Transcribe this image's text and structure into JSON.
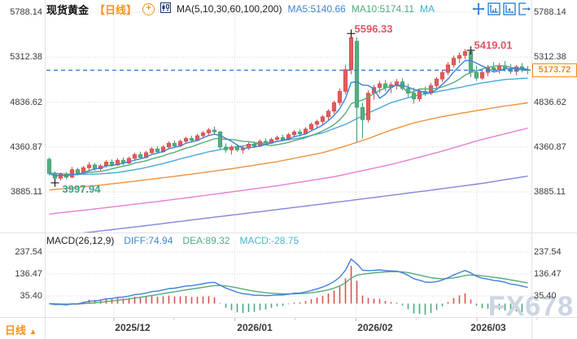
{
  "header": {
    "symbol": "现货黄金",
    "period_tag": "【日线】",
    "add_icon": "+",
    "ma_settings": "MA(5,10,30,60,100,200)",
    "ma5_label": "MA5:5140.66",
    "ma10_label": "MA10:5174.11",
    "ma_more_label": "MA"
  },
  "axes": {
    "price_labels": [
      "5788.14",
      "5312.38",
      "4836.62",
      "4360.87",
      "3885.11"
    ],
    "macd_labels": [
      "237.54",
      "136.47",
      "35.40"
    ],
    "time_labels": [
      "2025/12",
      "2026/01",
      "2026/02",
      "2026/03"
    ]
  },
  "annotations": {
    "high1": "5596.33",
    "high2": "5419.01",
    "low": "3997.94",
    "last_price": "5173.72"
  },
  "macd_header": {
    "title": "MACD(26,12,9)",
    "diff": "DIFF:74.94",
    "dea": "DEA:89.32",
    "macd": "MACD:-28.75"
  },
  "bottom": {
    "period_button": "日线",
    "period_arrow": "▲"
  },
  "watermark": "FX678",
  "colors": {
    "up": "#e25b5b",
    "up_stroke": "#d94f4f",
    "down": "#58ad80",
    "down_stroke": "#3f9f6f",
    "ma5": "#4180d8",
    "ma10": "#55ab7a",
    "ma30": "#49a8dc",
    "ma60": "#f0923f",
    "ma100": "#e87fd4",
    "ma200": "#8585e0",
    "last_line": "#2b7cd6",
    "grid": "#d6d6d6",
    "hist_pos": "#d9534f",
    "hist_neg": "#4aa97c",
    "accent_orange": "#f7941e",
    "toolbar_blue": "#1f78c8"
  },
  "chart_data": {
    "type": "candlestick+macd",
    "title": "现货黄金 日线 (Spot Gold Daily)",
    "x_axis_months": [
      "2025/12",
      "2026/01",
      "2026/02",
      "2026/03"
    ],
    "price_axis_ticks": [
      5788.14,
      5312.38,
      4836.62,
      4360.87,
      3885.11
    ],
    "macd_axis_ticks": [
      237.54,
      136.47,
      35.4
    ],
    "last_price": 5173.72,
    "ma5_current": 5140.66,
    "ma10_current": 5174.11,
    "macd_params": [
      26,
      12,
      9
    ],
    "macd_current": {
      "diff": 74.94,
      "dea": 89.32,
      "macd": -28.75
    },
    "high_annotations": [
      {
        "index": 53,
        "price": 5596.33
      },
      {
        "index": 74,
        "price": 5419.01
      }
    ],
    "low_annotation": {
      "index": 1,
      "price": 3997.94
    },
    "candles": [
      [
        4230,
        4250,
        4060,
        4080
      ],
      [
        4080,
        4100,
        3997.9,
        4030
      ],
      [
        4030,
        4090,
        4005,
        4075
      ],
      [
        4075,
        4095,
        4020,
        4040
      ],
      [
        4040,
        4150,
        4030,
        4120
      ],
      [
        4120,
        4140,
        4060,
        4080
      ],
      [
        4080,
        4160,
        4070,
        4140
      ],
      [
        4140,
        4200,
        4100,
        4170
      ],
      [
        4170,
        4190,
        4110,
        4130
      ],
      [
        4130,
        4180,
        4100,
        4160
      ],
      [
        4160,
        4220,
        4140,
        4200
      ],
      [
        4200,
        4230,
        4150,
        4170
      ],
      [
        4170,
        4240,
        4160,
        4220
      ],
      [
        4220,
        4250,
        4170,
        4190
      ],
      [
        4190,
        4260,
        4180,
        4240
      ],
      [
        4240,
        4300,
        4220,
        4280
      ],
      [
        4280,
        4310,
        4230,
        4250
      ],
      [
        4250,
        4320,
        4240,
        4300
      ],
      [
        4300,
        4360,
        4280,
        4340
      ],
      [
        4340,
        4370,
        4290,
        4310
      ],
      [
        4310,
        4380,
        4300,
        4360
      ],
      [
        4360,
        4420,
        4340,
        4400
      ],
      [
        4400,
        4430,
        4350,
        4370
      ],
      [
        4370,
        4440,
        4360,
        4420
      ],
      [
        4420,
        4470,
        4400,
        4450
      ],
      [
        4450,
        4480,
        4410,
        4430
      ],
      [
        4430,
        4500,
        4420,
        4480
      ],
      [
        4480,
        4530,
        4450,
        4510
      ],
      [
        4510,
        4560,
        4480,
        4540
      ],
      [
        4540,
        4575,
        4490,
        4520
      ],
      [
        4520,
        4530,
        4330,
        4360
      ],
      [
        4360,
        4400,
        4300,
        4330
      ],
      [
        4330,
        4380,
        4280,
        4360
      ],
      [
        4360,
        4390,
        4310,
        4330
      ],
      [
        4330,
        4370,
        4290,
        4350
      ],
      [
        4350,
        4410,
        4330,
        4390
      ],
      [
        4390,
        4420,
        4350,
        4370
      ],
      [
        4370,
        4440,
        4360,
        4420
      ],
      [
        4420,
        4450,
        4380,
        4400
      ],
      [
        4400,
        4460,
        4390,
        4440
      ],
      [
        4440,
        4480,
        4410,
        4460
      ],
      [
        4460,
        4490,
        4420,
        4440
      ],
      [
        4440,
        4510,
        4430,
        4490
      ],
      [
        4490,
        4540,
        4460,
        4520
      ],
      [
        4520,
        4550,
        4470,
        4500
      ],
      [
        4500,
        4570,
        4490,
        4550
      ],
      [
        4550,
        4620,
        4530,
        4600
      ],
      [
        4600,
        4650,
        4560,
        4630
      ],
      [
        4630,
        4700,
        4600,
        4680
      ],
      [
        4680,
        4760,
        4650,
        4740
      ],
      [
        4740,
        4850,
        4710,
        4830
      ],
      [
        4830,
        4980,
        4800,
        4950
      ],
      [
        4950,
        5230,
        4920,
        5180
      ],
      [
        5180,
        5596.3,
        5130,
        5520
      ],
      [
        5480,
        5520,
        4410,
        4780
      ],
      [
        4780,
        4830,
        4450,
        4650
      ],
      [
        4650,
        4960,
        4620,
        4930
      ],
      [
        4930,
        5020,
        4860,
        4990
      ],
      [
        4990,
        5060,
        4930,
        5030
      ],
      [
        5030,
        5070,
        4950,
        4990
      ],
      [
        4990,
        5050,
        4930,
        5020
      ],
      [
        5020,
        5080,
        4970,
        5050
      ],
      [
        5050,
        5090,
        4960,
        4980
      ],
      [
        4980,
        5030,
        4890,
        4930
      ],
      [
        4930,
        4990,
        4820,
        4870
      ],
      [
        4870,
        4980,
        4840,
        4950
      ],
      [
        4950,
        5000,
        4900,
        4930
      ],
      [
        4930,
        5040,
        4910,
        5010
      ],
      [
        5010,
        5100,
        4980,
        5080
      ],
      [
        5080,
        5180,
        5050,
        5150
      ],
      [
        5150,
        5260,
        5120,
        5230
      ],
      [
        5230,
        5330,
        5200,
        5300
      ],
      [
        5300,
        5360,
        5250,
        5330
      ],
      [
        5330,
        5400,
        5290,
        5370
      ],
      [
        5370,
        5419,
        5100,
        5150
      ],
      [
        5150,
        5220,
        5060,
        5090
      ],
      [
        5090,
        5180,
        5070,
        5150
      ],
      [
        5150,
        5230,
        5110,
        5200
      ],
      [
        5200,
        5260,
        5150,
        5180
      ],
      [
        5180,
        5250,
        5140,
        5220
      ],
      [
        5220,
        5270,
        5160,
        5190
      ],
      [
        5190,
        5240,
        5130,
        5160
      ],
      [
        5160,
        5230,
        5120,
        5210
      ],
      [
        5210,
        5250,
        5150,
        5180
      ],
      [
        5180,
        5220,
        5130,
        5173.7
      ]
    ],
    "ma30_points": [
      [
        0,
        4085
      ],
      [
        4,
        4070
      ],
      [
        8,
        4072
      ],
      [
        12,
        4090
      ],
      [
        16,
        4130
      ],
      [
        20,
        4185
      ],
      [
        24,
        4250
      ],
      [
        28,
        4310
      ],
      [
        32,
        4355
      ],
      [
        36,
        4390
      ],
      [
        40,
        4420
      ],
      [
        44,
        4455
      ],
      [
        48,
        4510
      ],
      [
        52,
        4600
      ],
      [
        56,
        4720
      ],
      [
        60,
        4830
      ],
      [
        64,
        4900
      ],
      [
        68,
        4945
      ],
      [
        72,
        4990
      ],
      [
        76,
        5040
      ],
      [
        80,
        5075
      ],
      [
        84,
        5090
      ]
    ],
    "ma60_points": [
      [
        0,
        3905
      ],
      [
        8,
        3950
      ],
      [
        16,
        4005
      ],
      [
        24,
        4065
      ],
      [
        32,
        4130
      ],
      [
        40,
        4205
      ],
      [
        48,
        4300
      ],
      [
        52,
        4370
      ],
      [
        56,
        4450
      ],
      [
        60,
        4540
      ],
      [
        64,
        4615
      ],
      [
        68,
        4670
      ],
      [
        72,
        4715
      ],
      [
        76,
        4755
      ],
      [
        80,
        4795
      ],
      [
        84,
        4828
      ]
    ],
    "ma100_points": [
      [
        0,
        3650
      ],
      [
        10,
        3718
      ],
      [
        20,
        3790
      ],
      [
        30,
        3868
      ],
      [
        40,
        3950
      ],
      [
        50,
        4045
      ],
      [
        60,
        4175
      ],
      [
        68,
        4300
      ],
      [
        76,
        4440
      ],
      [
        84,
        4560
      ]
    ],
    "ma200_points": [
      [
        6,
        3450
      ],
      [
        16,
        3520
      ],
      [
        26,
        3595
      ],
      [
        36,
        3668
      ],
      [
        46,
        3742
      ],
      [
        56,
        3818
      ],
      [
        66,
        3895
      ],
      [
        76,
        3975
      ],
      [
        84,
        4052
      ]
    ]
  }
}
